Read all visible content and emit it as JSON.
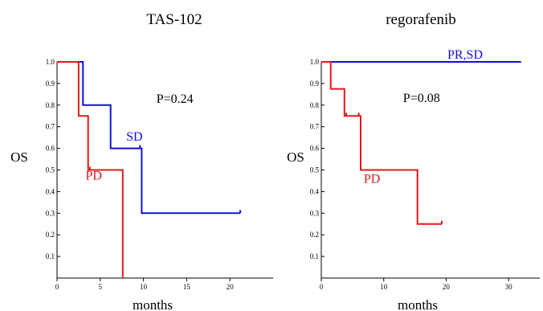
{
  "chart_data": [
    {
      "type": "line",
      "title": "TAS-102",
      "xlabel": "months",
      "ylabel": "OS",
      "xlim": [
        0,
        25
      ],
      "ylim": [
        0,
        1.0
      ],
      "x_ticks": [
        0,
        5,
        10,
        15,
        20
      ],
      "x_tick_labels": [
        "0",
        "5",
        "10",
        "15",
        "20"
      ],
      "y_ticks": [
        0.1,
        0.2,
        0.3,
        0.4,
        0.5,
        0.6,
        0.7,
        0.8,
        0.9,
        1.0
      ],
      "y_tick_labels": [
        "0.1",
        "0.2",
        "0.3",
        "0.4",
        "0.5",
        "0.6",
        "0.7",
        "0.8",
        "0.9",
        "1.0"
      ],
      "step": true,
      "series": [
        {
          "name": "SD",
          "color": "#1010d8",
          "points": [
            [
              0,
              1.0
            ],
            [
              3.0,
              1.0
            ],
            [
              3.0,
              0.8
            ],
            [
              6.2,
              0.8
            ],
            [
              6.2,
              0.6
            ],
            [
              9.8,
              0.6
            ],
            [
              9.8,
              0.3
            ],
            [
              21.2,
              0.3
            ]
          ],
          "censored": [
            [
              9.6,
              0.6
            ],
            [
              21.2,
              0.3
            ]
          ]
        },
        {
          "name": "PD",
          "color": "#e01818",
          "points": [
            [
              0,
              1.0
            ],
            [
              2.5,
              1.0
            ],
            [
              2.5,
              0.75
            ],
            [
              3.6,
              0.75
            ],
            [
              3.6,
              0.5
            ],
            [
              7.6,
              0.5
            ],
            [
              7.6,
              0.0
            ]
          ],
          "censored": [
            [
              3.8,
              0.5
            ]
          ]
        }
      ],
      "annotations": [
        {
          "text": "P=0.24",
          "x": 11.5,
          "y": 0.81,
          "color": "#000000"
        },
        {
          "text": "SD",
          "x": 8.0,
          "y": 0.635,
          "color": "#1010d8"
        },
        {
          "text": "PD",
          "x": 3.3,
          "y": 0.455,
          "color": "#e01818"
        }
      ]
    },
    {
      "type": "line",
      "title": "regorafenib",
      "xlabel": "months",
      "ylabel": "OS",
      "xlim": [
        0,
        35
      ],
      "ylim": [
        0,
        1.0
      ],
      "x_ticks": [
        0,
        10,
        20,
        30
      ],
      "x_tick_labels": [
        "0",
        "10",
        "20",
        "30"
      ],
      "y_ticks": [
        0.1,
        0.2,
        0.3,
        0.4,
        0.5,
        0.6,
        0.7,
        0.8,
        0.9,
        1.0
      ],
      "y_tick_labels": [
        "0.1",
        "0.2",
        "0.3",
        "0.4",
        "0.5",
        "0.6",
        "0.7",
        "0.8",
        "0.9",
        "1.0"
      ],
      "step": true,
      "series": [
        {
          "name": "PR,SD",
          "color": "#1010d8",
          "points": [
            [
              0,
              1.0
            ],
            [
              32.0,
              1.0
            ]
          ],
          "censored": []
        },
        {
          "name": "PD",
          "color": "#e01818",
          "points": [
            [
              0,
              1.0
            ],
            [
              1.5,
              1.0
            ],
            [
              1.5,
              0.875
            ],
            [
              3.7,
              0.875
            ],
            [
              3.7,
              0.75
            ],
            [
              6.3,
              0.75
            ],
            [
              6.3,
              0.5
            ],
            [
              15.4,
              0.5
            ],
            [
              15.4,
              0.25
            ],
            [
              19.3,
              0.25
            ]
          ],
          "censored": [
            [
              4.0,
              0.75
            ],
            [
              6.0,
              0.75
            ],
            [
              19.3,
              0.25
            ]
          ]
        }
      ],
      "annotations": [
        {
          "text": "P=0.08",
          "x": 13.1,
          "y": 0.815,
          "color": "#000000"
        },
        {
          "text": "PR,SD",
          "x": 20.2,
          "y": 1.015,
          "color": "#1010d8"
        },
        {
          "text": "PD",
          "x": 6.8,
          "y": 0.44,
          "color": "#e01818"
        }
      ]
    }
  ]
}
